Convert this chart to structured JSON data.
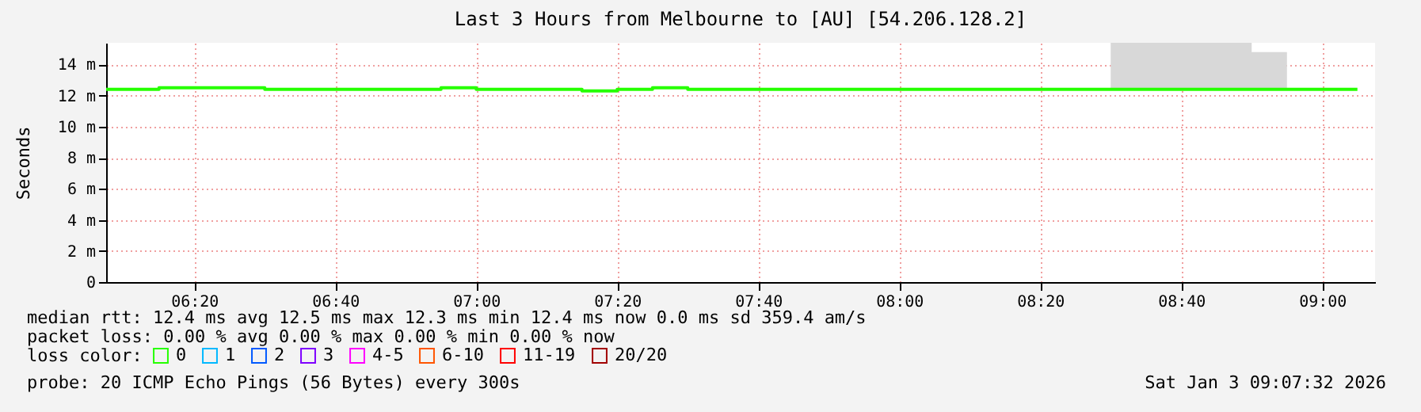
{
  "chart_data": {
    "type": "step",
    "title": "Last 3 Hours from Melbourne to [AU] [54.206.128.2]",
    "ylabel": "Seconds",
    "xlim": [
      6.125,
      9.125
    ],
    "xticks": [
      {
        "value": 6.3333,
        "label": "06:20"
      },
      {
        "value": 6.6667,
        "label": "06:40"
      },
      {
        "value": 7.0,
        "label": "07:00"
      },
      {
        "value": 7.3333,
        "label": "07:20"
      },
      {
        "value": 7.6667,
        "label": "07:40"
      },
      {
        "value": 8.0,
        "label": "08:00"
      },
      {
        "value": 8.3333,
        "label": "08:20"
      },
      {
        "value": 8.6667,
        "label": "08:40"
      },
      {
        "value": 9.0,
        "label": "09:00"
      }
    ],
    "ylim": [
      0,
      15.4
    ],
    "yticks": [
      0,
      {
        "value": 2,
        "label": "2 m"
      },
      {
        "value": 4,
        "label": "4 m"
      },
      {
        "value": 6,
        "label": "6 m"
      },
      {
        "value": 8,
        "label": "8 m"
      },
      {
        "value": 10,
        "label": "10 m"
      },
      {
        "value": 12,
        "label": "12 m"
      },
      {
        "value": 14,
        "label": "14 m"
      }
    ],
    "grid": true,
    "legend": "bottom left",
    "legend_title": "loss color:",
    "series": [
      {
        "name": "0",
        "color": "#26ff00",
        "x": [
          6.125,
          6.25,
          6.5,
          6.9167,
          7.0,
          7.25,
          7.3333,
          7.4167,
          7.5,
          8.5,
          8.8333,
          8.9167,
          9.0833
        ],
        "values": [
          12.4,
          12.5,
          12.4,
          12.5,
          12.4,
          12.3,
          12.4,
          12.5,
          12.4,
          12.4,
          12.4,
          12.4,
          12.4
        ],
        "lower": [
          null,
          null,
          null,
          null,
          null,
          null,
          null,
          null,
          null,
          12.4,
          12.4,
          12.4,
          null
        ],
        "upper": [
          null,
          null,
          null,
          null,
          null,
          null,
          null,
          null,
          null,
          15.4,
          14.8,
          14.8,
          null
        ]
      },
      {
        "name": "1",
        "color": "#00b8ff"
      },
      {
        "name": "2",
        "color": "#0059ff"
      },
      {
        "name": "3",
        "color": "#7e00ff"
      },
      {
        "name": "4-5",
        "color": "#ff00ff"
      },
      {
        "name": "6-10",
        "color": "#ff5500"
      },
      {
        "name": "11-19",
        "color": "#ff0000"
      },
      {
        "name": "20/20",
        "color": "#a10000"
      }
    ],
    "annotations": [
      "median rtt:  12.4 ms avg  12.5 ms max  12.3 ms min  12.4 ms now  0.0 ms sd  359.4   am/s",
      "packet loss: 0.00 % avg  0.00 % max  0.00 % min  0.00 % now",
      "probe:       20 ICMP Echo Pings (56 Bytes) every 300s",
      "Sat Jan  3 09:07:32 2026"
    ]
  }
}
